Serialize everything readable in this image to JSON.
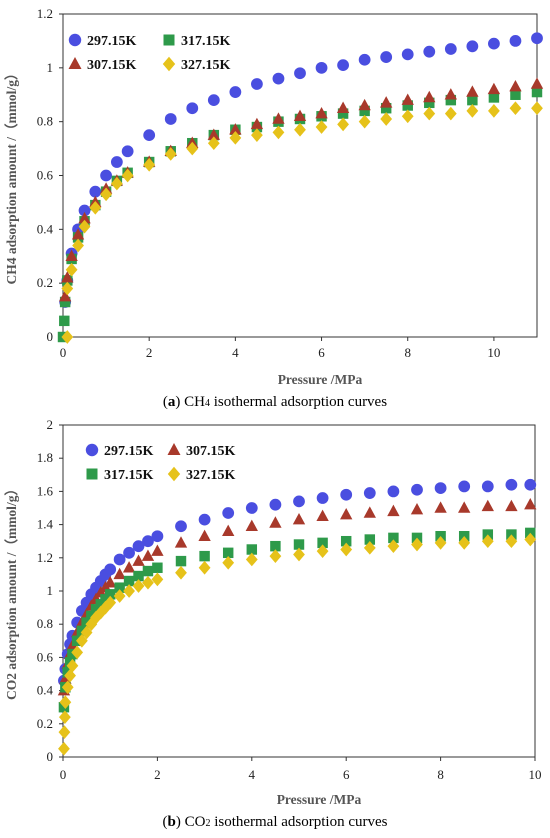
{
  "captions": [
    {
      "letter": "a",
      "prefix": "CH",
      "sub": "4",
      "suffix": " isothermal adsorption curves"
    },
    {
      "letter": "b",
      "prefix": "CO",
      "sub": "2",
      "suffix": " isothermal adsorption curves"
    }
  ],
  "colors": {
    "297.15K": "#4a4ee0",
    "307.15K": "#a8392b",
    "317.15K": "#2e9a4a",
    "327.15K": "#e6c21a"
  },
  "chart_data": [
    {
      "type": "scatter",
      "xlabel": "Pressure /MPa",
      "ylabel": "CH4 adsorption amount /（mmol/g）",
      "xlim": [
        0,
        11
      ],
      "ylim": [
        0,
        1.2
      ],
      "xticks": [
        0,
        2,
        4,
        6,
        8,
        10
      ],
      "yticks": [
        0,
        0.2,
        0.4,
        0.6,
        0.8,
        1,
        1.2
      ],
      "ytick_labels": [
        "0",
        "0.2",
        "0.4",
        "0.6",
        "0.8",
        "1",
        "1.2"
      ],
      "legend": "top-left",
      "legend_order": [
        "297.15K",
        "317.15K",
        "307.15K",
        "327.15K"
      ],
      "series": [
        {
          "name": "297.15K",
          "marker": "circle",
          "points": [
            [
              0.05,
              0.13
            ],
            [
              0.1,
              0.21
            ],
            [
              0.2,
              0.31
            ],
            [
              0.35,
              0.4
            ],
            [
              0.5,
              0.47
            ],
            [
              0.75,
              0.54
            ],
            [
              1,
              0.6
            ],
            [
              1.25,
              0.65
            ],
            [
              1.5,
              0.69
            ],
            [
              2,
              0.75
            ],
            [
              2.5,
              0.81
            ],
            [
              3,
              0.85
            ],
            [
              3.5,
              0.88
            ],
            [
              4,
              0.91
            ],
            [
              4.5,
              0.94
            ],
            [
              5,
              0.96
            ],
            [
              5.5,
              0.98
            ],
            [
              6,
              1.0
            ],
            [
              6.5,
              1.01
            ],
            [
              7,
              1.03
            ],
            [
              7.5,
              1.04
            ],
            [
              8,
              1.05
            ],
            [
              8.5,
              1.06
            ],
            [
              9,
              1.07
            ],
            [
              9.5,
              1.08
            ],
            [
              10,
              1.09
            ],
            [
              10.5,
              1.1
            ],
            [
              11,
              1.11
            ]
          ]
        },
        {
          "name": "317.15K",
          "marker": "square",
          "points": [
            [
              0,
              0.0
            ],
            [
              0.03,
              0.06
            ],
            [
              0.05,
              0.13
            ],
            [
              0.1,
              0.21
            ],
            [
              0.2,
              0.29
            ],
            [
              0.35,
              0.37
            ],
            [
              0.5,
              0.43
            ],
            [
              0.75,
              0.49
            ],
            [
              1,
              0.54
            ],
            [
              1.25,
              0.58
            ],
            [
              1.5,
              0.61
            ],
            [
              2,
              0.65
            ],
            [
              2.5,
              0.69
            ],
            [
              3,
              0.72
            ],
            [
              3.5,
              0.75
            ],
            [
              4,
              0.77
            ],
            [
              4.5,
              0.78
            ],
            [
              5,
              0.8
            ],
            [
              5.5,
              0.81
            ],
            [
              6,
              0.82
            ],
            [
              6.5,
              0.83
            ],
            [
              7,
              0.84
            ],
            [
              7.5,
              0.85
            ],
            [
              8,
              0.86
            ],
            [
              8.5,
              0.87
            ],
            [
              9,
              0.88
            ],
            [
              9.5,
              0.88
            ],
            [
              10,
              0.89
            ],
            [
              10.5,
              0.9
            ],
            [
              11,
              0.91
            ]
          ]
        },
        {
          "name": "307.15K",
          "marker": "triangle",
          "points": [
            [
              0.05,
              0.15
            ],
            [
              0.1,
              0.22
            ],
            [
              0.2,
              0.3
            ],
            [
              0.35,
              0.38
            ],
            [
              0.5,
              0.44
            ],
            [
              0.75,
              0.5
            ],
            [
              1,
              0.55
            ],
            [
              1.25,
              0.58
            ],
            [
              1.5,
              0.61
            ],
            [
              2,
              0.65
            ],
            [
              2.5,
              0.69
            ],
            [
              3,
              0.72
            ],
            [
              3.5,
              0.75
            ],
            [
              4,
              0.77
            ],
            [
              4.5,
              0.79
            ],
            [
              5,
              0.81
            ],
            [
              5.5,
              0.82
            ],
            [
              6,
              0.83
            ],
            [
              6.5,
              0.85
            ],
            [
              7,
              0.86
            ],
            [
              7.5,
              0.87
            ],
            [
              8,
              0.88
            ],
            [
              8.5,
              0.89
            ],
            [
              9,
              0.9
            ],
            [
              9.5,
              0.91
            ],
            [
              10,
              0.92
            ],
            [
              10.5,
              0.93
            ],
            [
              11,
              0.94
            ]
          ]
        },
        {
          "name": "327.15K",
          "marker": "diamond",
          "points": [
            [
              0.1,
              0.0
            ],
            [
              0.1,
              0.18
            ],
            [
              0.2,
              0.25
            ],
            [
              0.35,
              0.34
            ],
            [
              0.5,
              0.41
            ],
            [
              0.75,
              0.48
            ],
            [
              1,
              0.53
            ],
            [
              1.25,
              0.57
            ],
            [
              1.5,
              0.6
            ],
            [
              2,
              0.64
            ],
            [
              2.5,
              0.68
            ],
            [
              3,
              0.7
            ],
            [
              3.5,
              0.72
            ],
            [
              4,
              0.74
            ],
            [
              4.5,
              0.75
            ],
            [
              5,
              0.76
            ],
            [
              5.5,
              0.77
            ],
            [
              6,
              0.78
            ],
            [
              6.5,
              0.79
            ],
            [
              7,
              0.8
            ],
            [
              7.5,
              0.81
            ],
            [
              8,
              0.82
            ],
            [
              8.5,
              0.83
            ],
            [
              9,
              0.83
            ],
            [
              9.5,
              0.84
            ],
            [
              10,
              0.84
            ],
            [
              10.5,
              0.85
            ],
            [
              11,
              0.85
            ]
          ]
        }
      ]
    },
    {
      "type": "scatter",
      "xlabel": "Pressure /MPa",
      "ylabel": "CO2 adsorption amount /（mmol/g）",
      "xlim": [
        0,
        10
      ],
      "ylim": [
        0,
        2
      ],
      "xticks": [
        0,
        2,
        4,
        6,
        8,
        10
      ],
      "yticks": [
        0,
        0.2,
        0.4,
        0.6,
        0.8,
        1,
        1.2,
        1.4,
        1.6,
        1.8,
        2
      ],
      "ytick_labels": [
        "0",
        "0.2",
        "0.4",
        "0.6",
        "0.8",
        "1",
        "1.2",
        "1.4",
        "1.6",
        "1.8",
        "2"
      ],
      "legend": "top-left",
      "legend_order": [
        "297.15K",
        "307.15K",
        "317.15K",
        "327.15K"
      ],
      "series": [
        {
          "name": "297.15K",
          "marker": "circle",
          "points": [
            [
              0.02,
              0.46
            ],
            [
              0.05,
              0.53
            ],
            [
              0.1,
              0.62
            ],
            [
              0.15,
              0.68
            ],
            [
              0.2,
              0.73
            ],
            [
              0.3,
              0.81
            ],
            [
              0.4,
              0.88
            ],
            [
              0.5,
              0.93
            ],
            [
              0.6,
              0.98
            ],
            [
              0.7,
              1.02
            ],
            [
              0.8,
              1.06
            ],
            [
              0.9,
              1.1
            ],
            [
              1,
              1.13
            ],
            [
              1.2,
              1.19
            ],
            [
              1.4,
              1.23
            ],
            [
              1.6,
              1.27
            ],
            [
              1.8,
              1.3
            ],
            [
              2,
              1.33
            ],
            [
              2.5,
              1.39
            ],
            [
              3,
              1.43
            ],
            [
              3.5,
              1.47
            ],
            [
              4,
              1.5
            ],
            [
              4.5,
              1.52
            ],
            [
              5,
              1.54
            ],
            [
              5.5,
              1.56
            ],
            [
              6,
              1.58
            ],
            [
              6.5,
              1.59
            ],
            [
              7,
              1.6
            ],
            [
              7.5,
              1.61
            ],
            [
              8,
              1.62
            ],
            [
              8.5,
              1.63
            ],
            [
              9,
              1.63
            ],
            [
              9.5,
              1.64
            ],
            [
              9.9,
              1.64
            ]
          ]
        },
        {
          "name": "307.15K",
          "marker": "triangle",
          "points": [
            [
              0.02,
              0.4
            ],
            [
              0.05,
              0.47
            ],
            [
              0.1,
              0.56
            ],
            [
              0.15,
              0.62
            ],
            [
              0.2,
              0.67
            ],
            [
              0.3,
              0.75
            ],
            [
              0.4,
              0.81
            ],
            [
              0.5,
              0.86
            ],
            [
              0.6,
              0.91
            ],
            [
              0.7,
              0.95
            ],
            [
              0.8,
              0.99
            ],
            [
              0.9,
              1.02
            ],
            [
              1,
              1.05
            ],
            [
              1.2,
              1.1
            ],
            [
              1.4,
              1.14
            ],
            [
              1.6,
              1.18
            ],
            [
              1.8,
              1.21
            ],
            [
              2,
              1.24
            ],
            [
              2.5,
              1.29
            ],
            [
              3,
              1.33
            ],
            [
              3.5,
              1.36
            ],
            [
              4,
              1.39
            ],
            [
              4.5,
              1.41
            ],
            [
              5,
              1.43
            ],
            [
              5.5,
              1.45
            ],
            [
              6,
              1.46
            ],
            [
              6.5,
              1.47
            ],
            [
              7,
              1.48
            ],
            [
              7.5,
              1.49
            ],
            [
              8,
              1.5
            ],
            [
              8.5,
              1.5
            ],
            [
              9,
              1.51
            ],
            [
              9.5,
              1.51
            ],
            [
              9.9,
              1.52
            ]
          ]
        },
        {
          "name": "317.15K",
          "marker": "square",
          "points": [
            [
              0.02,
              0.3
            ],
            [
              0.05,
              0.42
            ],
            [
              0.1,
              0.51
            ],
            [
              0.15,
              0.57
            ],
            [
              0.2,
              0.62
            ],
            [
              0.3,
              0.7
            ],
            [
              0.4,
              0.76
            ],
            [
              0.5,
              0.81
            ],
            [
              0.6,
              0.85
            ],
            [
              0.7,
              0.89
            ],
            [
              0.8,
              0.92
            ],
            [
              0.9,
              0.95
            ],
            [
              1,
              0.98
            ],
            [
              1.2,
              1.02
            ],
            [
              1.4,
              1.06
            ],
            [
              1.6,
              1.09
            ],
            [
              1.8,
              1.12
            ],
            [
              2,
              1.14
            ],
            [
              2.5,
              1.18
            ],
            [
              3,
              1.21
            ],
            [
              3.5,
              1.23
            ],
            [
              4,
              1.25
            ],
            [
              4.5,
              1.27
            ],
            [
              5,
              1.28
            ],
            [
              5.5,
              1.29
            ],
            [
              6,
              1.3
            ],
            [
              6.5,
              1.31
            ],
            [
              7,
              1.32
            ],
            [
              7.5,
              1.32
            ],
            [
              8,
              1.33
            ],
            [
              8.5,
              1.33
            ],
            [
              9,
              1.34
            ],
            [
              9.5,
              1.34
            ],
            [
              9.9,
              1.35
            ]
          ]
        },
        {
          "name": "327.15K",
          "marker": "diamond",
          "points": [
            [
              0.02,
              0.05
            ],
            [
              0.03,
              0.15
            ],
            [
              0.04,
              0.24
            ],
            [
              0.05,
              0.33
            ],
            [
              0.1,
              0.42
            ],
            [
              0.15,
              0.49
            ],
            [
              0.2,
              0.55
            ],
            [
              0.3,
              0.63
            ],
            [
              0.4,
              0.7
            ],
            [
              0.5,
              0.75
            ],
            [
              0.6,
              0.8
            ],
            [
              0.7,
              0.84
            ],
            [
              0.8,
              0.87
            ],
            [
              0.9,
              0.9
            ],
            [
              1,
              0.93
            ],
            [
              1.2,
              0.97
            ],
            [
              1.4,
              1.0
            ],
            [
              1.6,
              1.03
            ],
            [
              1.8,
              1.05
            ],
            [
              2,
              1.07
            ],
            [
              2.5,
              1.11
            ],
            [
              3,
              1.14
            ],
            [
              3.5,
              1.17
            ],
            [
              4,
              1.19
            ],
            [
              4.5,
              1.21
            ],
            [
              5,
              1.22
            ],
            [
              5.5,
              1.24
            ],
            [
              6,
              1.25
            ],
            [
              6.5,
              1.26
            ],
            [
              7,
              1.27
            ],
            [
              7.5,
              1.28
            ],
            [
              8,
              1.29
            ],
            [
              8.5,
              1.29
            ],
            [
              9,
              1.3
            ],
            [
              9.5,
              1.3
            ],
            [
              9.9,
              1.31
            ]
          ]
        }
      ]
    }
  ]
}
